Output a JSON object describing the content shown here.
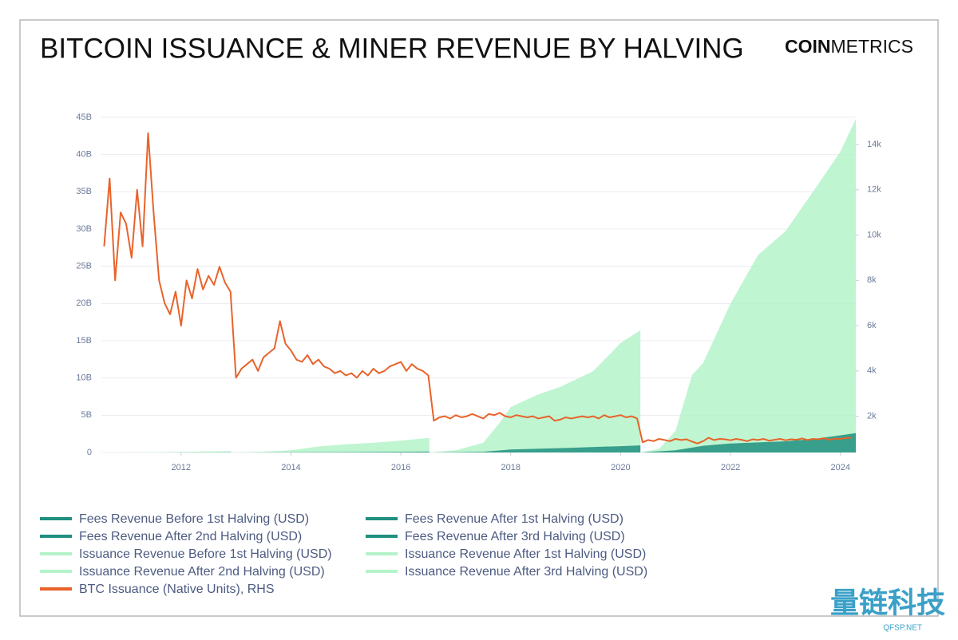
{
  "brand": {
    "bold": "COIN",
    "light": "METRICS"
  },
  "watermark": {
    "text": "量链科技",
    "sub": "QFSP.NET"
  },
  "chart_data": {
    "type": "area",
    "title": "BITCOIN ISSUANCE & MINER REVENUE BY HALVING",
    "xlim": [
      2010.55,
      2024.28
    ],
    "xticks": [
      2012,
      2014,
      2016,
      2018,
      2020,
      2022,
      2024
    ],
    "ylim": [
      0,
      45000000000
    ],
    "yticks": [
      0,
      {
        "value": 5000000000,
        "label": "5B"
      },
      {
        "value": 10000000000,
        "label": "10B"
      },
      {
        "value": 15000000000,
        "label": "15B"
      },
      {
        "value": 20000000000,
        "label": "20B"
      },
      {
        "value": 25000000000,
        "label": "25B"
      },
      {
        "value": 30000000000,
        "label": "30B"
      },
      {
        "value": 35000000000,
        "label": "35B"
      },
      {
        "value": 40000000000,
        "label": "40B"
      },
      {
        "value": 45000000000,
        "label": "45B"
      }
    ],
    "y2lim": [
      400,
      15200
    ],
    "y2ticks": [
      {
        "value": 2000,
        "label": "2k"
      },
      {
        "value": 4000,
        "label": "4k"
      },
      {
        "value": 6000,
        "label": "6k"
      },
      {
        "value": 8000,
        "label": "8k"
      },
      {
        "value": 10000,
        "label": "10k"
      },
      {
        "value": 12000,
        "label": "12k"
      },
      {
        "value": 14000,
        "label": "14k"
      }
    ],
    "grid": true,
    "series": [
      {
        "name": "Fees Revenue Before 1st Halving (USD)",
        "type": "area",
        "color": "#1f8f7f",
        "x": [
          2010.55,
          2011.5,
          2012.5,
          2012.91
        ],
        "values": [
          0,
          5000000,
          20000000,
          30000000
        ]
      },
      {
        "name": "Fees Revenue After 1st Halving (USD)",
        "type": "area",
        "color": "#1f8f7f",
        "x": [
          2012.91,
          2014,
          2015,
          2016,
          2016.52
        ],
        "values": [
          0,
          30000000,
          60000000,
          90000000,
          120000000
        ]
      },
      {
        "name": "Fees Revenue After 2nd Halving (USD)",
        "type": "area",
        "color": "#1f8f7f",
        "x": [
          2016.52,
          2017.5,
          2018,
          2019,
          2020,
          2020.36
        ],
        "values": [
          0,
          100000000,
          400000000,
          600000000,
          850000000,
          950000000
        ]
      },
      {
        "name": "Fees Revenue After 3rd Halving (USD)",
        "type": "area",
        "color": "#1f8f7f",
        "x": [
          2020.36,
          2021,
          2021.5,
          2022,
          2023,
          2023.5,
          2024,
          2024.28
        ],
        "values": [
          0,
          300000000,
          900000000,
          1200000000,
          1500000000,
          1800000000,
          2300000000,
          2600000000
        ]
      },
      {
        "name": "Issuance Revenue Before 1st Halving (USD)",
        "type": "area",
        "color": "#b4f3c9",
        "x": [
          2010.55,
          2011,
          2011.5,
          2012,
          2012.5,
          2012.91
        ],
        "values": [
          0,
          10000000,
          40000000,
          80000000,
          130000000,
          180000000
        ]
      },
      {
        "name": "Issuance Revenue After 1st Halving (USD)",
        "type": "area",
        "color": "#b4f3c9",
        "x": [
          2012.91,
          2013.5,
          2014,
          2014.5,
          2015,
          2015.5,
          2016,
          2016.52
        ],
        "values": [
          0,
          100000000,
          300000000,
          800000000,
          1100000000,
          1300000000,
          1600000000,
          1950000000
        ]
      },
      {
        "name": "Issuance Revenue After 2nd Halving (USD)",
        "type": "area",
        "color": "#b4f3c9",
        "x": [
          2016.52,
          2017,
          2017.5,
          2017.8,
          2018,
          2018.5,
          2018.9,
          2019.5,
          2020,
          2020.36
        ],
        "values": [
          0,
          300000000,
          1300000000,
          4000000000,
          6100000000,
          7800000000,
          8800000000,
          10900000000,
          14700000000,
          16400000000
        ]
      },
      {
        "name": "Issuance Revenue After 3rd Halving (USD)",
        "type": "area",
        "color": "#b4f3c9",
        "x": [
          2020.36,
          2020.7,
          2021,
          2021.3,
          2021.5,
          2022,
          2022.5,
          2023,
          2023.5,
          2024,
          2024.28
        ],
        "values": [
          0,
          500000000,
          2900000000,
          10400000000,
          12000000000,
          20000000000,
          26500000000,
          29700000000,
          35000000000,
          40400000000,
          44800000000
        ]
      },
      {
        "name": "BTC Issuance (Native Units), RHS",
        "type": "line",
        "axis": "y2",
        "color": "#e8632a",
        "x": [
          2010.6,
          2010.7,
          2010.8,
          2010.9,
          2011.0,
          2011.1,
          2011.2,
          2011.3,
          2011.4,
          2011.5,
          2011.6,
          2011.7,
          2011.8,
          2011.9,
          2012.0,
          2012.1,
          2012.2,
          2012.3,
          2012.4,
          2012.5,
          2012.6,
          2012.7,
          2012.8,
          2012.9,
          2013.0,
          2013.1,
          2013.2,
          2013.3,
          2013.4,
          2013.5,
          2013.6,
          2013.7,
          2013.8,
          2013.9,
          2014.0,
          2014.1,
          2014.2,
          2014.3,
          2014.4,
          2014.5,
          2014.6,
          2014.7,
          2014.8,
          2014.9,
          2015.0,
          2015.1,
          2015.2,
          2015.3,
          2015.4,
          2015.5,
          2015.6,
          2015.7,
          2015.8,
          2015.9,
          2016.0,
          2016.1,
          2016.2,
          2016.3,
          2016.4,
          2016.5,
          2016.6,
          2016.7,
          2016.8,
          2016.9,
          2017.0,
          2017.1,
          2017.2,
          2017.3,
          2017.4,
          2017.5,
          2017.6,
          2017.7,
          2017.8,
          2017.9,
          2018.0,
          2018.1,
          2018.2,
          2018.3,
          2018.4,
          2018.5,
          2018.6,
          2018.7,
          2018.8,
          2018.9,
          2019.0,
          2019.1,
          2019.2,
          2019.3,
          2019.4,
          2019.5,
          2019.6,
          2019.7,
          2019.8,
          2019.9,
          2020.0,
          2020.1,
          2020.2,
          2020.3,
          2020.4,
          2020.5,
          2020.6,
          2020.7,
          2020.8,
          2020.9,
          2021.0,
          2021.1,
          2021.2,
          2021.3,
          2021.4,
          2021.5,
          2021.6,
          2021.7,
          2021.8,
          2021.9,
          2022.0,
          2022.1,
          2022.2,
          2022.3,
          2022.4,
          2022.5,
          2022.6,
          2022.7,
          2022.8,
          2022.9,
          2023.0,
          2023.1,
          2023.2,
          2023.3,
          2023.4,
          2023.5,
          2023.6,
          2023.7,
          2023.8,
          2023.9,
          2024.0,
          2024.1,
          2024.2
        ],
        "values": [
          9500,
          12500,
          8000,
          11000,
          10500,
          9000,
          12000,
          9500,
          14500,
          11000,
          8000,
          7000,
          6500,
          7500,
          6000,
          8000,
          7200,
          8500,
          7600,
          8200,
          7800,
          8600,
          7900,
          7500,
          3700,
          4100,
          4300,
          4500,
          4000,
          4600,
          4800,
          5000,
          6200,
          5200,
          4900,
          4500,
          4400,
          4700,
          4300,
          4500,
          4200,
          4100,
          3900,
          4000,
          3800,
          3900,
          3700,
          4000,
          3800,
          4100,
          3900,
          4000,
          4200,
          4300,
          4400,
          4000,
          4300,
          4100,
          4000,
          3800,
          1800,
          1950,
          2000,
          1900,
          2050,
          1950,
          2000,
          2100,
          2000,
          1900,
          2100,
          2050,
          2150,
          2000,
          1950,
          2050,
          2000,
          1950,
          2000,
          1900,
          1950,
          2000,
          1800,
          1850,
          1950,
          1900,
          1950,
          2000,
          1950,
          2000,
          1900,
          2050,
          1950,
          2000,
          2050,
          1950,
          2000,
          1900,
          850,
          950,
          900,
          1000,
          950,
          900,
          1000,
          950,
          980,
          880,
          800,
          900,
          1050,
          950,
          1000,
          980,
          940,
          1000,
          960,
          900,
          980,
          950,
          1000,
          920,
          960,
          1000,
          940,
          980,
          960,
          1020,
          950,
          1000,
          980,
          1030,
          960,
          1010,
          1000,
          1040,
          1050
        ]
      }
    ]
  }
}
